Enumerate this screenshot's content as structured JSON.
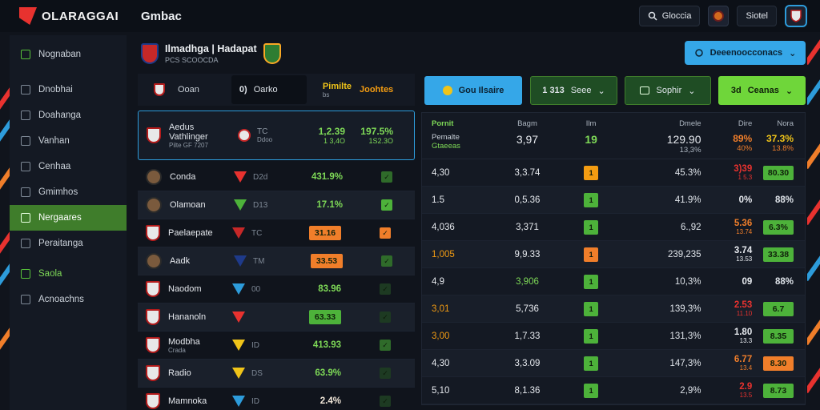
{
  "app": {
    "logo_text": "OLARAGGAI",
    "section_title": "Gmbac"
  },
  "topbar": {
    "search_label": "Gloccia",
    "user_label": "Siotel"
  },
  "sidebar": {
    "items": [
      {
        "label": "Nognaban",
        "state": "green-icon"
      },
      {
        "label": "Dnobhai",
        "state": "normal"
      },
      {
        "label": "Doahanga",
        "state": "normal"
      },
      {
        "label": "Vanhan",
        "state": "normal"
      },
      {
        "label": "Cenhaa",
        "state": "normal"
      },
      {
        "label": "Gmimhos",
        "state": "normal"
      },
      {
        "label": "Nergaares",
        "state": "active"
      },
      {
        "label": "Peraitanga",
        "state": "normal"
      },
      {
        "label": "Saola",
        "state": "green"
      },
      {
        "label": "Acnoachns",
        "state": "normal"
      }
    ]
  },
  "match": {
    "title": "Ilmadhga | Hadapat",
    "subtitle": "PCS SCOOCDA",
    "cta_label": "Deeenoocconacs"
  },
  "filters": {
    "search_label": "Ooan",
    "chip_label": "Oarko",
    "chip_num": "0)",
    "meta1": "Pimilte",
    "meta1_sub": "bs",
    "meta2": "Joohtes"
  },
  "featured": {
    "name": "Aedus",
    "name2": "Vathlinger",
    "sub": "Pilte GF 7207",
    "mid": "TC",
    "mid_sub": "Ddoo",
    "val1": "1,2.39",
    "val1_sub": "1 3,4O",
    "val2": "197.5%",
    "val2_sub": "1S2.3O"
  },
  "left_rows": [
    {
      "name": "Conda",
      "mid": "D2d",
      "value": "431.9%",
      "value_color": "#7ed957",
      "badge": "",
      "check_color": "#2f6b2a"
    },
    {
      "name": "Olamoan",
      "mid": "D13",
      "value": "17.1%",
      "value_color": "#7ed957",
      "badge": "",
      "check_color": "#4db23a"
    },
    {
      "name": "Paelaepate",
      "mid": "TC",
      "value": "",
      "value_color": "",
      "badge": "31.16",
      "badge_color": "#f07e2a",
      "check_color": "#f07e2a"
    },
    {
      "name": "Aadk",
      "mid": "TM",
      "value": "",
      "value_color": "",
      "badge": "33.53",
      "badge_color": "#f07e2a",
      "check_color": "#2f6b2a"
    },
    {
      "name": "Naodom",
      "mid": "00",
      "value": "83.96",
      "value_color": "#7ed957",
      "badge": "",
      "check_color": "#1d3a22"
    },
    {
      "name": "Hananoln",
      "mid": "",
      "value": "",
      "value_color": "",
      "badge": "63.33",
      "badge_color": "#4db23a",
      "check_color": "#1d3a22"
    },
    {
      "name": "Modbha",
      "name_sub": "Crada",
      "mid": "ID",
      "value": "413.93",
      "value_color": "#7ed957",
      "badge": "",
      "check_color": "#2f6b2a"
    },
    {
      "name": "Radio",
      "mid": "DS",
      "value": "63.9%",
      "value_color": "#7ed957",
      "badge": "",
      "check_color": "#1d3a22"
    },
    {
      "name": "Mamnoka",
      "mid": "ID",
      "value": "2.4%",
      "value_color": "#f0e6d8",
      "badge": "",
      "check_color": "#1d3a22"
    }
  ],
  "right_buttons": [
    {
      "label": "Gou Ilsaire",
      "num": ""
    },
    {
      "label": "Seee",
      "num": "1 313"
    },
    {
      "label": "Sophir",
      "num": ""
    },
    {
      "label": "Ceanas",
      "num": "3d"
    }
  ],
  "right_head": {
    "c1": "Pornit",
    "c1_sub": "Pemalte",
    "c1_sub2": "Gtaeeas",
    "c2": "Bagm",
    "c2_val": "3,97",
    "c3": "Ilm",
    "c3_val": "19",
    "c4": "Dmele",
    "c4_val": "129.90",
    "c4_sub": "13,3%",
    "c5": "Dire",
    "c5_val": "89%",
    "c5_sub": "40%",
    "c6": "Nora",
    "c6_val": "37.3%",
    "c6_sub": "13.8%"
  },
  "right_rows": [
    {
      "c1": "4,30",
      "c1_color": "#e6e9ee",
      "c2": "3,3.74",
      "c2_color": "#e6e9ee",
      "sq": "#f39c12",
      "c4": "45.3%",
      "c5": "3)39",
      "c5_color": "#e8322f",
      "c5_sub": "1 5.3",
      "c6": "80.30",
      "c6_color": "#4db23a"
    },
    {
      "c1": "1.5",
      "c1_color": "#e6e9ee",
      "c2": "0,5.36",
      "c2_color": "#e6e9ee",
      "sq": "#4db23a",
      "c4": "41.9%",
      "c5": "0%",
      "c5_color": "#e6e9ee",
      "c5_sub": "",
      "c6": "88%",
      "c6_color": ""
    },
    {
      "c1": "4,036",
      "c1_color": "#e6e9ee",
      "c2": "3,371",
      "c2_color": "#e6e9ee",
      "sq": "#4db23a",
      "c4": "6.,92",
      "c5": "5.36",
      "c5_color": "#f07e2a",
      "c5_sub": "13.74",
      "c6": "6.3%",
      "c6_color": "#4db23a"
    },
    {
      "c1": "1,005",
      "c1_color": "#f39c12",
      "c2": "9,9.33",
      "c2_color": "#e6e9ee",
      "sq": "#f07e2a",
      "c4": "239,235",
      "c5": "3.74",
      "c5_color": "#e6e9ee",
      "c5_sub": "13.53",
      "c6": "33.38",
      "c6_color": "#4db23a"
    },
    {
      "c1": "4,9",
      "c1_color": "#e6e9ee",
      "c2": "3,906",
      "c2_color": "#7ed957",
      "sq": "#4db23a",
      "c4": "10,3%",
      "c5": "09",
      "c5_color": "#e6e9ee",
      "c5_sub": "",
      "c6": "88%",
      "c6_color": ""
    },
    {
      "c1": "3,01",
      "c1_color": "#f39c12",
      "c2": "5,736",
      "c2_color": "#e6e9ee",
      "sq": "#4db23a",
      "c4": "139,3%",
      "c5": "2.53",
      "c5_color": "#e8322f",
      "c5_sub": "11.10",
      "c6": "6.7",
      "c6_color": "#4db23a"
    },
    {
      "c1": "3,00",
      "c1_color": "#f39c12",
      "c2": "1,7.33",
      "c2_color": "#e6e9ee",
      "sq": "#4db23a",
      "c4": "131,3%",
      "c5": "1.80",
      "c5_color": "#e6e9ee",
      "c5_sub": "13.3",
      "c6": "8.35",
      "c6_color": "#4db23a"
    },
    {
      "c1": "4,30",
      "c1_color": "#e6e9ee",
      "c2": "3,3.09",
      "c2_color": "#e6e9ee",
      "sq": "#4db23a",
      "c4": "147,3%",
      "c5": "6.77",
      "c5_color": "#f07e2a",
      "c5_sub": "13.4",
      "c6": "8.30",
      "c6_color": "#f07e2a"
    },
    {
      "c1": "5,10",
      "c1_color": "#e6e9ee",
      "c2": "8,1.36",
      "c2_color": "#e6e9ee",
      "sq": "#4db23a",
      "c4": "2,9%",
      "c5": "2.9",
      "c5_color": "#e8322f",
      "c5_sub": "13.5",
      "c6": "8.73",
      "c6_color": "#4db23a"
    }
  ]
}
